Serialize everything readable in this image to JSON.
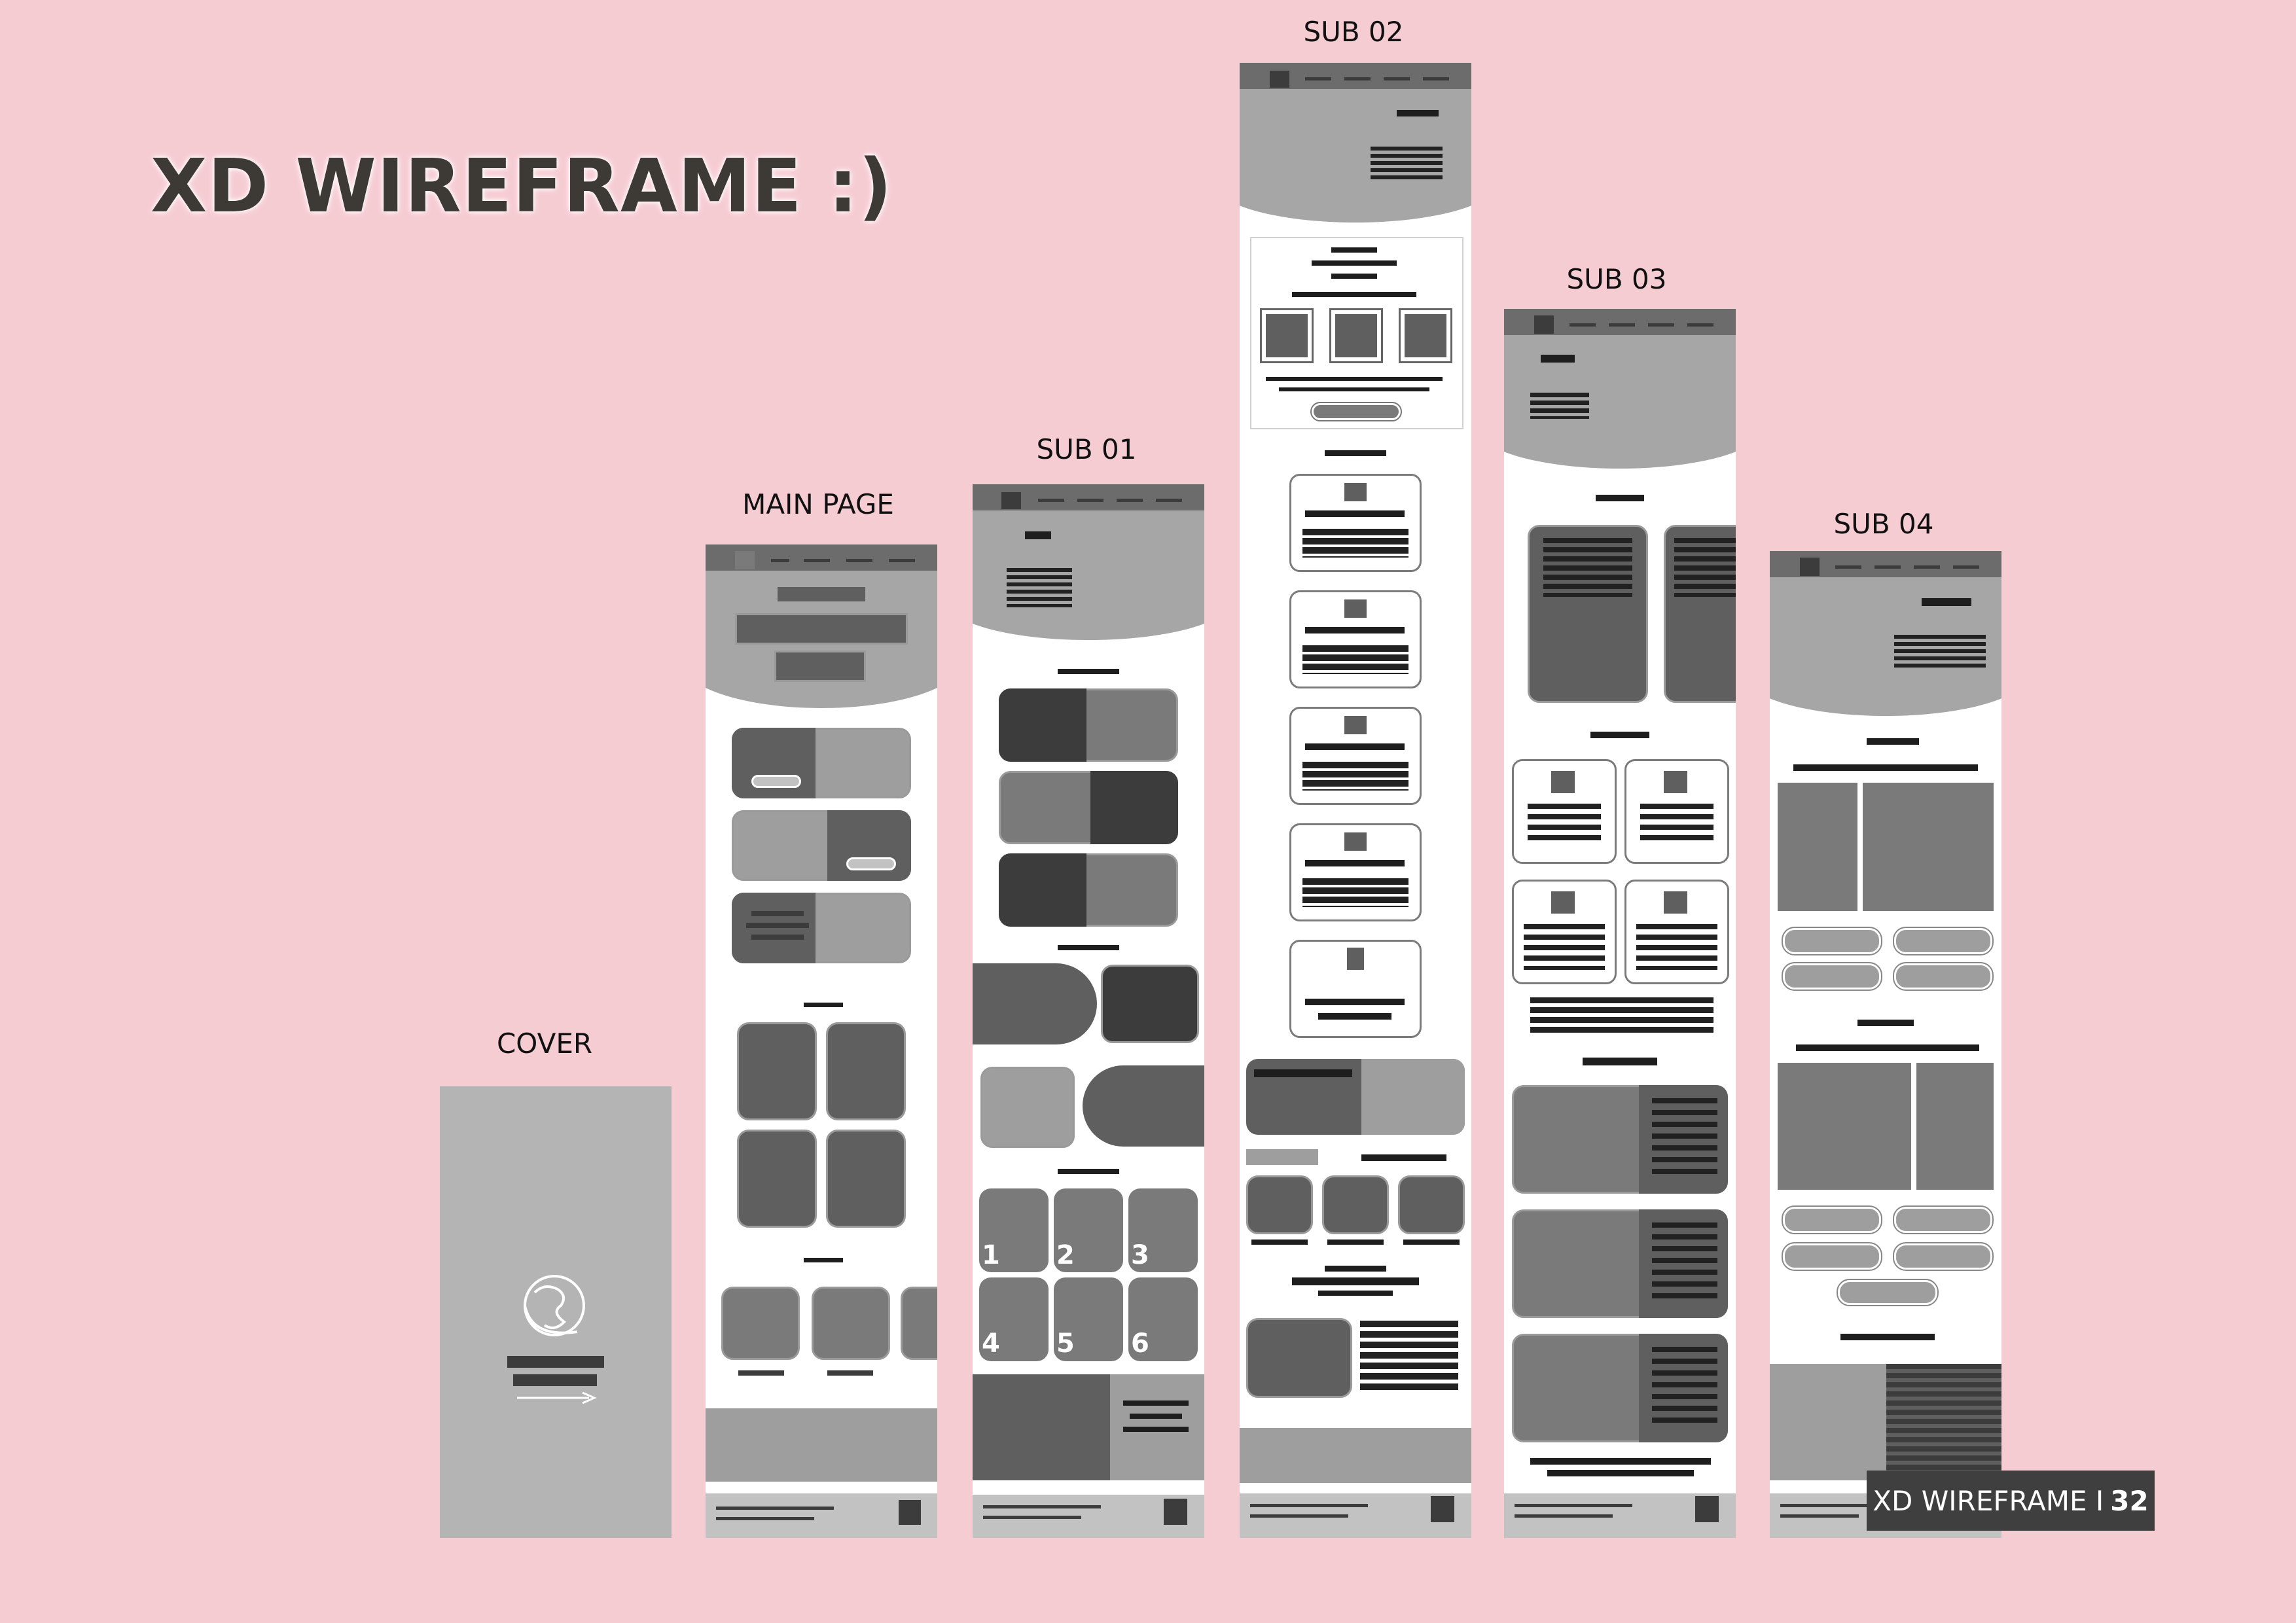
{
  "title": "XD WIREFRAME :)",
  "screens": {
    "cover": "COVER",
    "main": "MAIN PAGE",
    "sub01": "SUB 01",
    "sub02": "SUB 02",
    "sub03": "SUB 03",
    "sub04": "SUB 04"
  },
  "grid_numbers": [
    "1",
    "2",
    "3",
    "4",
    "5",
    "6"
  ],
  "badge": {
    "text": "XD WIREFRAME I",
    "page": "32"
  },
  "colors": {
    "background": "#f6ccd3",
    "wire_dark": "#3c3c3c",
    "wire_mid": "#7a7a7a",
    "wire_light": "#c2c2c2"
  }
}
